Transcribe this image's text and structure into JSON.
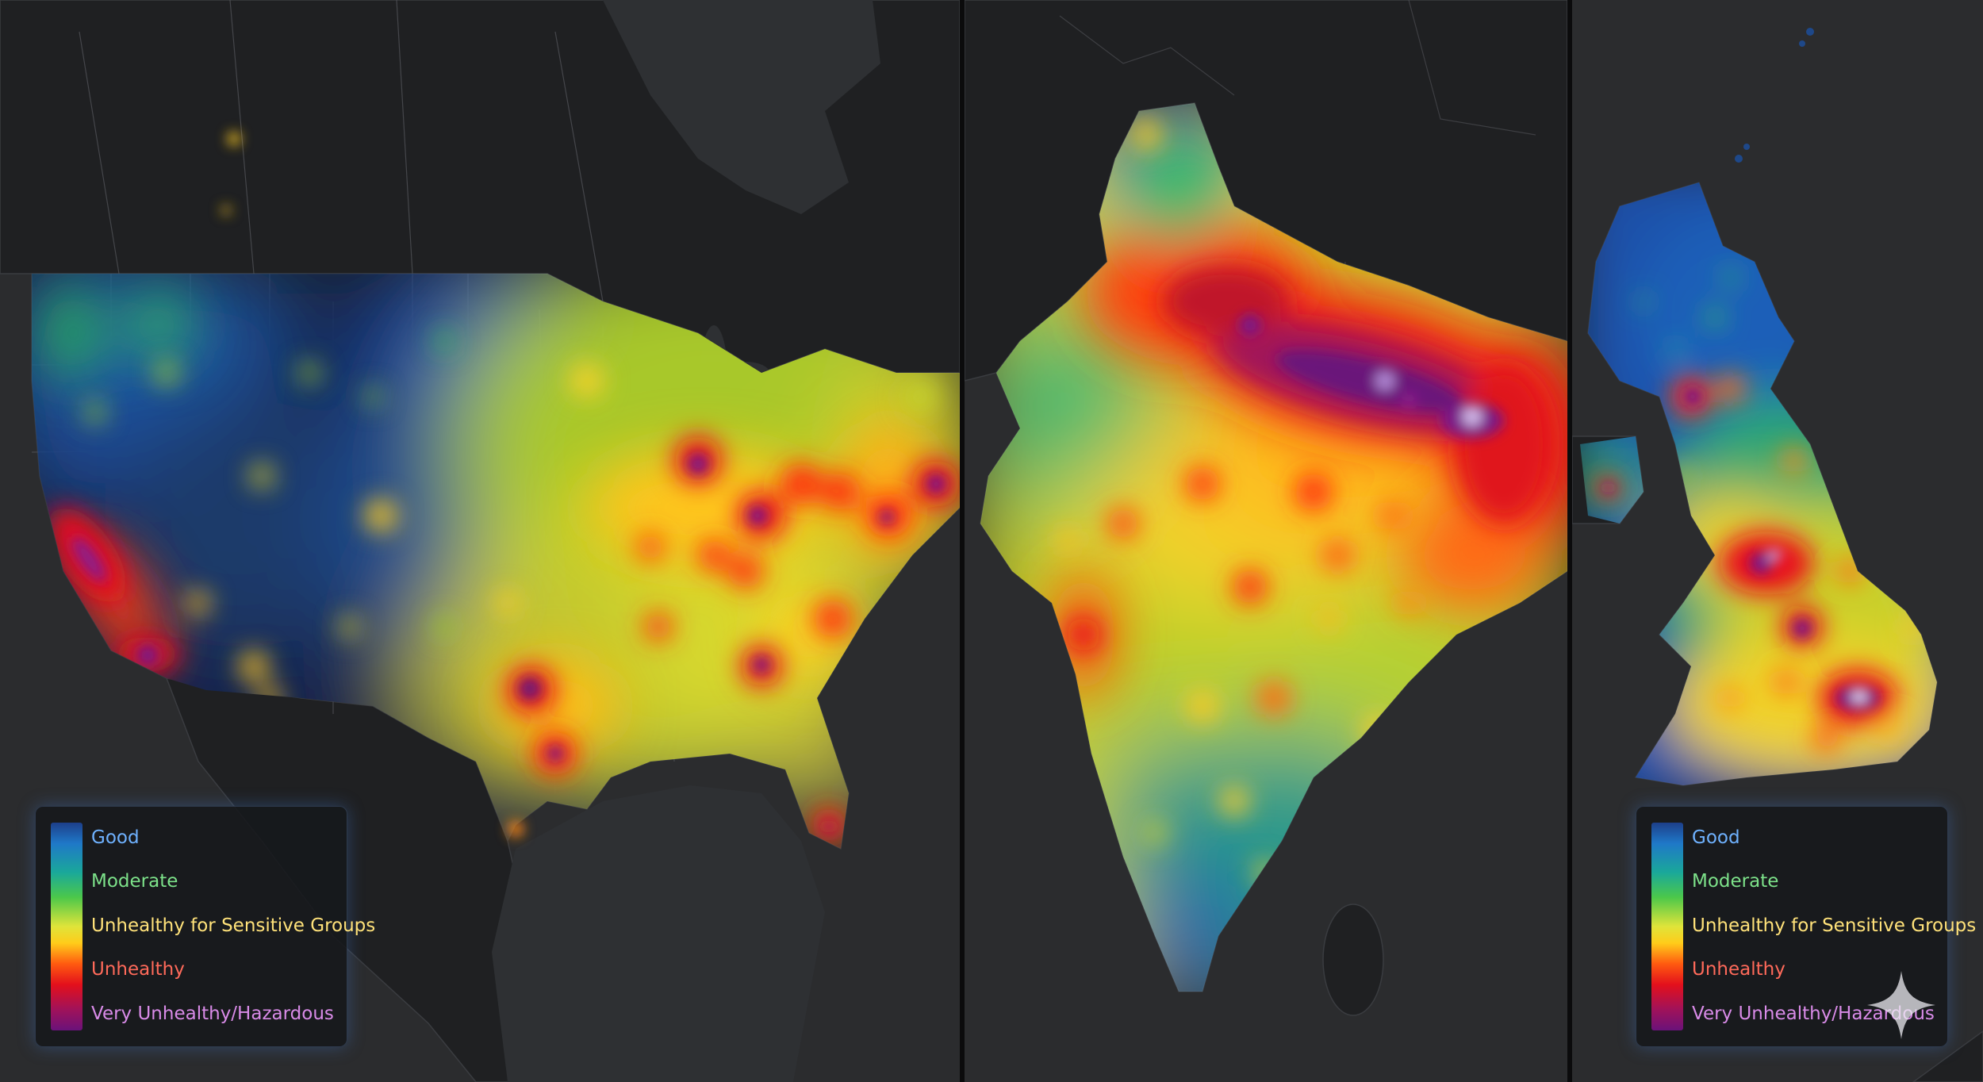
{
  "legend_left": {
    "items": [
      {
        "label": "Good",
        "color": "#6fb2ff"
      },
      {
        "label": "Moderate",
        "color": "#7de28a"
      },
      {
        "label": "Unhealthy for Sensitive Groups",
        "color": "#ffe27a"
      },
      {
        "label": "Unhealthy",
        "color": "#ff6a5a"
      },
      {
        "label": "Very Unhealthy/Hazardous",
        "color": "#d98be8"
      }
    ]
  },
  "legend_right": {
    "items": [
      {
        "label": "Good",
        "color": "#6fb2ff"
      },
      {
        "label": "Moderate",
        "color": "#7de28a"
      },
      {
        "label": "Unhealthy for Sensitive Groups",
        "color": "#ffe27a"
      },
      {
        "label": "Unhealthy",
        "color": "#ff6a5a"
      },
      {
        "label": "Very Unhealthy/Hazardous",
        "color": "#d98be8"
      }
    ]
  },
  "panels": [
    "usa-air-quality-map",
    "india-air-quality-map",
    "uk-air-quality-map"
  ],
  "colors": {
    "background": "#2b2c2e",
    "land": "#1f2022",
    "good": "#1f5fc0",
    "moderate": "#30b85a",
    "usg": "#f0e030",
    "unhealthy": "#e8141c",
    "hazardous": "#7a1488"
  }
}
